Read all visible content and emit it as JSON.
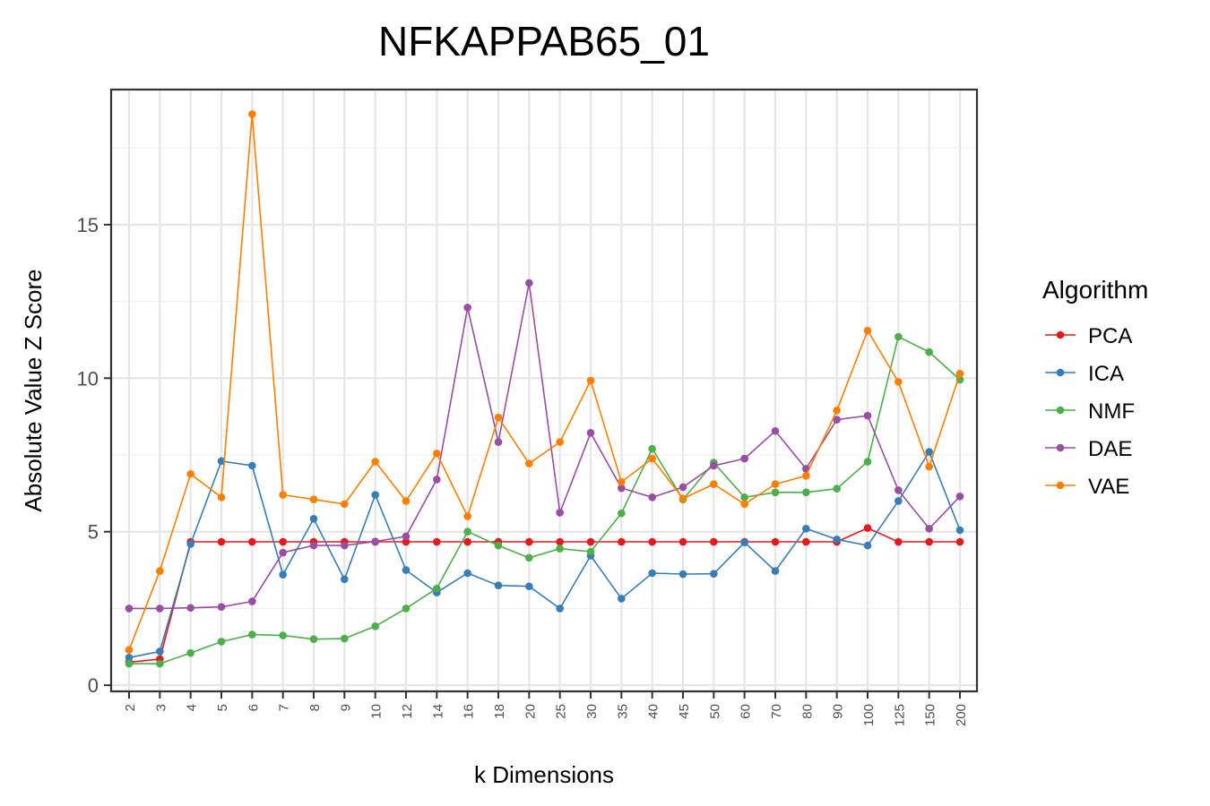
{
  "chart_data": {
    "type": "line",
    "title": "NFKAPPAB65_01",
    "xlabel": "k Dimensions",
    "ylabel": "Absolute Value Z Score",
    "categories": [
      "2",
      "3",
      "4",
      "5",
      "6",
      "7",
      "8",
      "9",
      "10",
      "12",
      "14",
      "16",
      "18",
      "20",
      "25",
      "30",
      "35",
      "40",
      "45",
      "50",
      "60",
      "70",
      "80",
      "90",
      "100",
      "125",
      "150",
      "200"
    ],
    "yticks": [
      0,
      5,
      10,
      15
    ],
    "ylim": [
      -0.2,
      19.4
    ],
    "grid": true,
    "legend": {
      "title": "Algorithm",
      "position": "right"
    },
    "series": [
      {
        "name": "PCA",
        "color": "#e41a1c",
        "values": [
          0.75,
          0.85,
          4.67,
          4.67,
          4.67,
          4.67,
          4.67,
          4.67,
          4.67,
          4.67,
          4.67,
          4.67,
          4.67,
          4.67,
          4.67,
          4.67,
          4.67,
          4.67,
          4.67,
          4.67,
          4.67,
          4.67,
          4.67,
          4.67,
          5.12,
          4.67,
          4.67,
          4.67
        ]
      },
      {
        "name": "ICA",
        "color": "#377eb8",
        "values": [
          0.9,
          1.1,
          4.6,
          7.3,
          7.15,
          3.6,
          5.42,
          3.45,
          6.2,
          3.75,
          3.02,
          3.65,
          3.25,
          3.22,
          2.5,
          4.22,
          2.82,
          3.65,
          3.62,
          3.63,
          4.65,
          3.72,
          5.1,
          4.75,
          4.55,
          6.0,
          7.6,
          5.05
        ]
      },
      {
        "name": "NMF",
        "color": "#4daf4a",
        "values": [
          0.7,
          0.7,
          1.05,
          1.42,
          1.65,
          1.62,
          1.5,
          1.52,
          1.92,
          2.5,
          3.15,
          5.0,
          4.55,
          4.15,
          4.45,
          4.35,
          5.6,
          7.7,
          6.05,
          7.25,
          6.12,
          6.28,
          6.28,
          6.4,
          7.28,
          11.35,
          10.85,
          9.95
        ]
      },
      {
        "name": "DAE",
        "color": "#984ea3",
        "values": [
          2.5,
          2.5,
          2.52,
          2.55,
          2.73,
          4.32,
          4.55,
          4.55,
          4.68,
          4.85,
          6.7,
          12.3,
          7.92,
          13.1,
          5.62,
          8.22,
          6.42,
          6.12,
          6.45,
          7.15,
          7.38,
          8.28,
          7.05,
          8.65,
          8.78,
          6.35,
          5.1,
          6.15
        ]
      },
      {
        "name": "VAE",
        "color": "#ff7f00",
        "values": [
          1.15,
          3.72,
          6.88,
          6.12,
          18.6,
          6.2,
          6.05,
          5.9,
          7.28,
          6.0,
          7.55,
          5.5,
          8.72,
          7.22,
          7.92,
          9.92,
          6.62,
          7.38,
          6.08,
          6.55,
          5.9,
          6.55,
          6.82,
          8.95,
          11.55,
          9.88,
          7.12,
          10.15
        ]
      }
    ]
  }
}
